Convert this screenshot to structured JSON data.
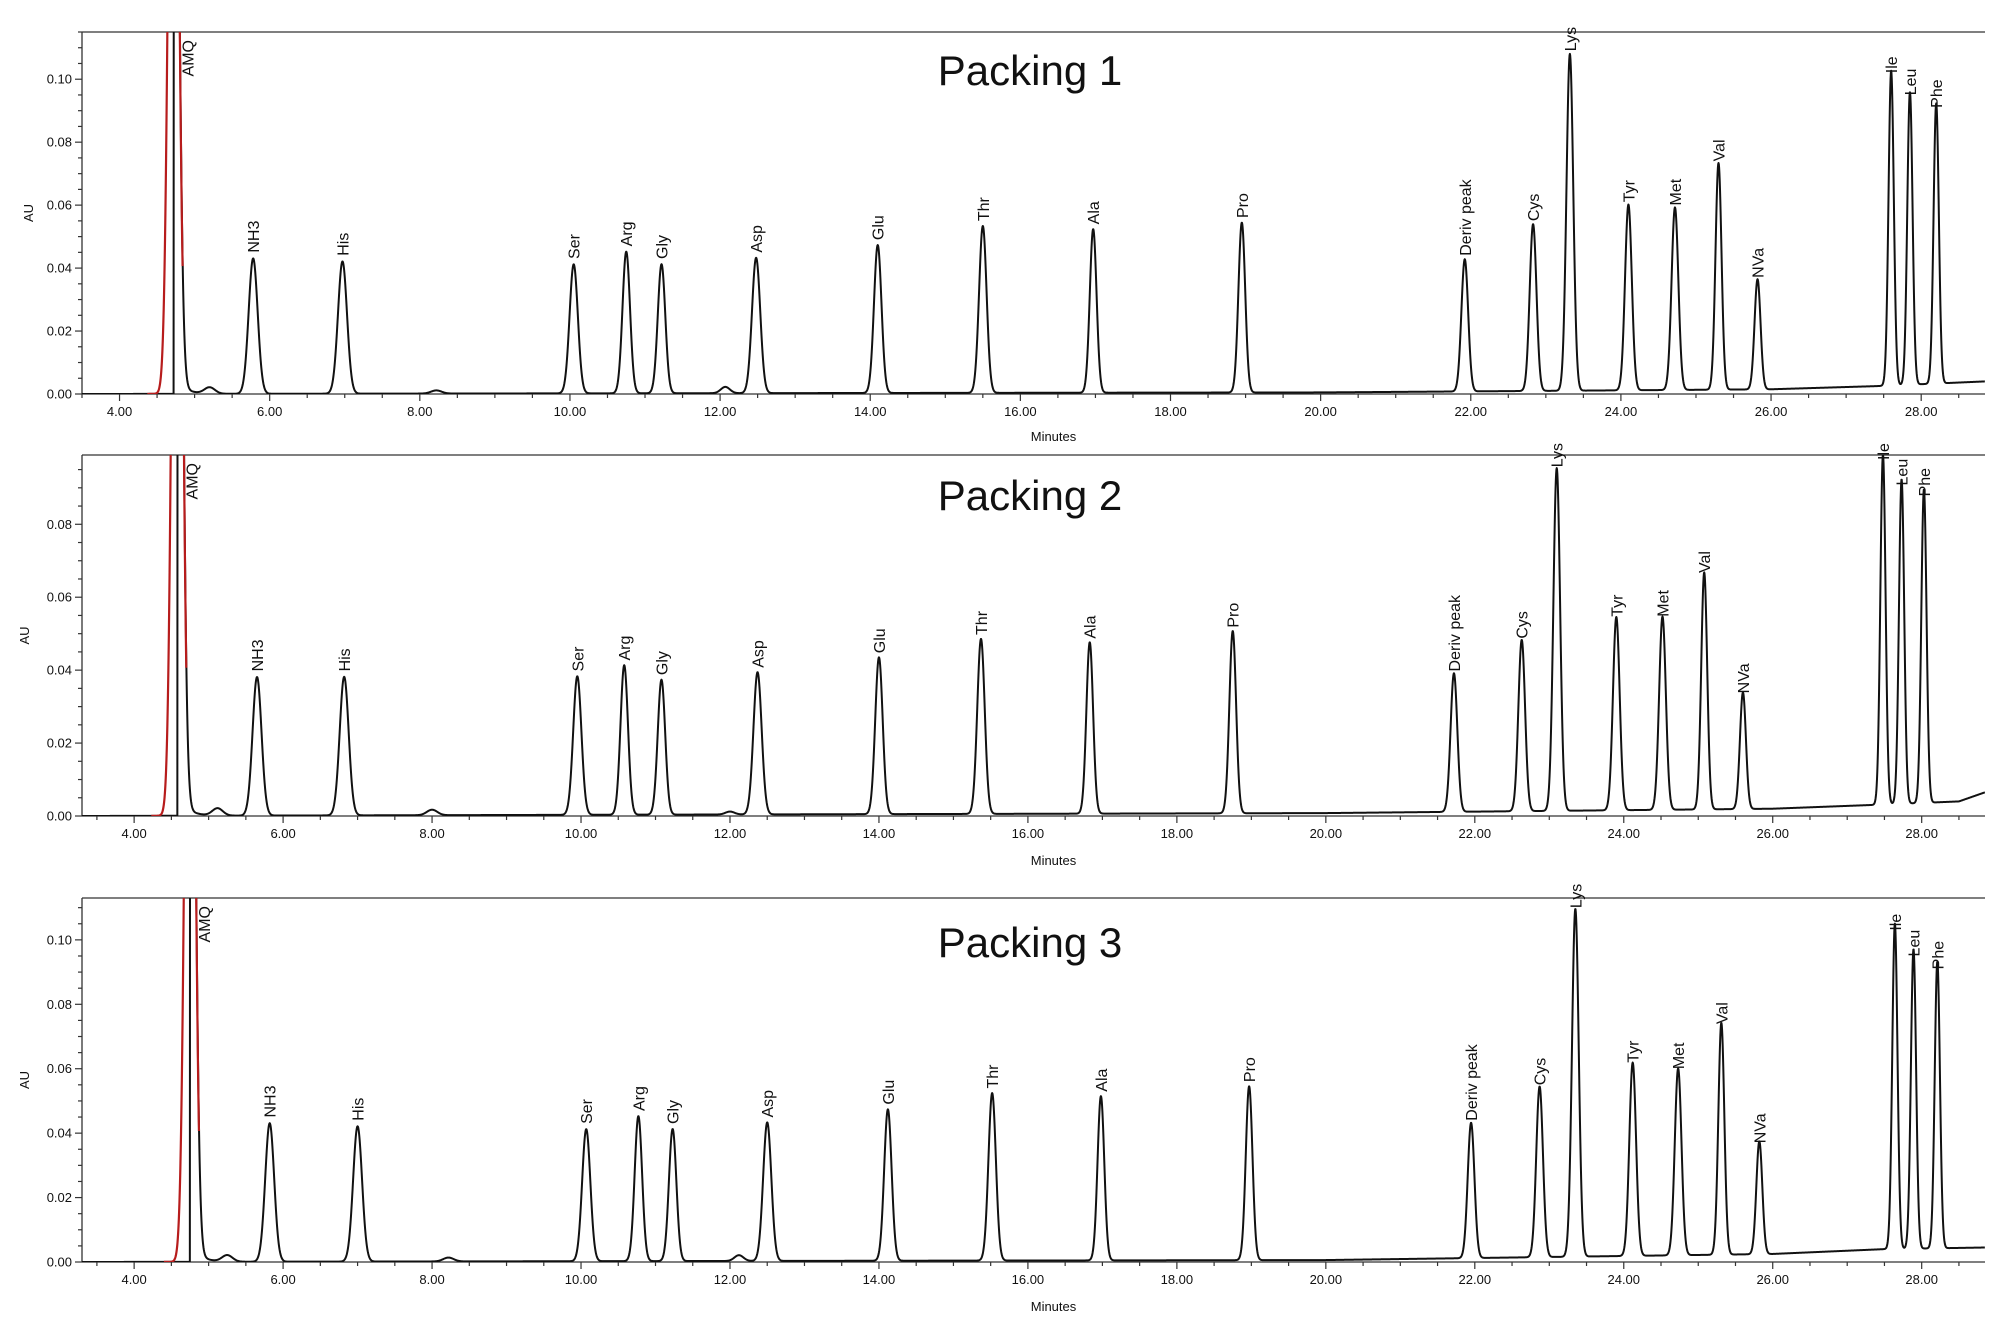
{
  "chart_data": [
    {
      "type": "line",
      "title": "Packing 1",
      "xlabel": "Minutes",
      "ylabel": "AU",
      "xlim": [
        3.5,
        28.85
      ],
      "ylim": [
        0,
        0.115
      ],
      "xticks": [
        "4.00",
        "6.00",
        "8.00",
        "10.00",
        "12.00",
        "14.00",
        "16.00",
        "18.00",
        "20.00",
        "22.00",
        "24.00",
        "26.00",
        "28.00"
      ],
      "yticks": [
        "0.00",
        "0.02",
        "0.04",
        "0.06",
        "0.08",
        "0.10"
      ],
      "grid": false,
      "peaks": [
        {
          "label": "AMQ",
          "x": 4.72,
          "y": 0.3,
          "w": 0.06,
          "color": "#b71c1c"
        },
        {
          "label": "NH3",
          "x": 5.78,
          "y": 0.043,
          "w": 0.06
        },
        {
          "label": "His",
          "x": 6.97,
          "y": 0.042,
          "w": 0.06
        },
        {
          "label": "Ser",
          "x": 10.05,
          "y": 0.041,
          "w": 0.055
        },
        {
          "label": "Arg",
          "x": 10.75,
          "y": 0.045,
          "w": 0.05
        },
        {
          "label": "Gly",
          "x": 11.22,
          "y": 0.041,
          "w": 0.05
        },
        {
          "label": "Asp",
          "x": 12.48,
          "y": 0.043,
          "w": 0.055
        },
        {
          "label": "Glu",
          "x": 14.1,
          "y": 0.047,
          "w": 0.05
        },
        {
          "label": "Thr",
          "x": 15.5,
          "y": 0.053,
          "w": 0.05
        },
        {
          "label": "Ala",
          "x": 16.97,
          "y": 0.052,
          "w": 0.045
        },
        {
          "label": "Pro",
          "x": 18.95,
          "y": 0.054,
          "w": 0.045
        },
        {
          "label": "Deriv peak",
          "x": 21.92,
          "y": 0.042,
          "w": 0.045
        },
        {
          "label": "Cys",
          "x": 22.83,
          "y": 0.053,
          "w": 0.045
        },
        {
          "label": "Lys",
          "x": 23.32,
          "y": 0.107,
          "w": 0.045
        },
        {
          "label": "Tyr",
          "x": 24.1,
          "y": 0.059,
          "w": 0.045
        },
        {
          "label": "Met",
          "x": 24.72,
          "y": 0.058,
          "w": 0.045
        },
        {
          "label": "Val",
          "x": 25.3,
          "y": 0.072,
          "w": 0.04
        },
        {
          "label": "NVa",
          "x": 25.82,
          "y": 0.035,
          "w": 0.04
        },
        {
          "label": "Ile",
          "x": 27.6,
          "y": 0.1,
          "w": 0.035
        },
        {
          "label": "Leu",
          "x": 27.85,
          "y": 0.093,
          "w": 0.035
        },
        {
          "label": "Phe",
          "x": 28.2,
          "y": 0.089,
          "w": 0.035
        }
      ],
      "minor_peaks": [
        {
          "x": 5.2,
          "y": 0.002,
          "w": 0.07
        },
        {
          "x": 8.22,
          "y": 0.001,
          "w": 0.07
        },
        {
          "x": 12.07,
          "y": 0.002,
          "w": 0.06
        }
      ],
      "baseline": [
        [
          3.5,
          0.0
        ],
        [
          20.0,
          0.0005
        ],
        [
          26.0,
          0.0015
        ],
        [
          27.4,
          0.0025
        ],
        [
          28.85,
          0.004
        ]
      ]
    },
    {
      "type": "line",
      "title": "Packing 2",
      "xlabel": "Minutes",
      "ylabel": "AU",
      "xlim": [
        3.3,
        28.85
      ],
      "ylim": [
        0,
        0.099
      ],
      "xticks": [
        "4.00",
        "6.00",
        "8.00",
        "10.00",
        "12.00",
        "14.00",
        "16.00",
        "18.00",
        "20.00",
        "22.00",
        "24.00",
        "26.00",
        "28.00"
      ],
      "yticks": [
        "0.00",
        "0.02",
        "0.04",
        "0.06",
        "0.08"
      ],
      "grid": false,
      "peaks": [
        {
          "label": "AMQ",
          "x": 4.58,
          "y": 0.3,
          "w": 0.06,
          "color": "#b71c1c"
        },
        {
          "label": "NH3",
          "x": 5.65,
          "y": 0.038,
          "w": 0.06
        },
        {
          "label": "His",
          "x": 6.82,
          "y": 0.038,
          "w": 0.06
        },
        {
          "label": "Ser",
          "x": 9.95,
          "y": 0.038,
          "w": 0.055
        },
        {
          "label": "Arg",
          "x": 10.58,
          "y": 0.041,
          "w": 0.05
        },
        {
          "label": "Gly",
          "x": 11.08,
          "y": 0.037,
          "w": 0.05
        },
        {
          "label": "Asp",
          "x": 12.37,
          "y": 0.039,
          "w": 0.055
        },
        {
          "label": "Glu",
          "x": 14.0,
          "y": 0.043,
          "w": 0.05
        },
        {
          "label": "Thr",
          "x": 15.37,
          "y": 0.048,
          "w": 0.05
        },
        {
          "label": "Ala",
          "x": 16.83,
          "y": 0.047,
          "w": 0.045
        },
        {
          "label": "Pro",
          "x": 18.75,
          "y": 0.05,
          "w": 0.045
        },
        {
          "label": "Deriv peak",
          "x": 21.72,
          "y": 0.038,
          "w": 0.045
        },
        {
          "label": "Cys",
          "x": 22.63,
          "y": 0.047,
          "w": 0.045
        },
        {
          "label": "Lys",
          "x": 23.1,
          "y": 0.094,
          "w": 0.045
        },
        {
          "label": "Tyr",
          "x": 23.9,
          "y": 0.053,
          "w": 0.045
        },
        {
          "label": "Met",
          "x": 24.52,
          "y": 0.053,
          "w": 0.045
        },
        {
          "label": "Val",
          "x": 25.08,
          "y": 0.065,
          "w": 0.04
        },
        {
          "label": "NVa",
          "x": 25.6,
          "y": 0.032,
          "w": 0.04
        },
        {
          "label": "Ile",
          "x": 27.48,
          "y": 0.096,
          "w": 0.035
        },
        {
          "label": "Leu",
          "x": 27.73,
          "y": 0.089,
          "w": 0.035
        },
        {
          "label": "Phe",
          "x": 28.03,
          "y": 0.086,
          "w": 0.035
        }
      ],
      "minor_peaks": [
        {
          "x": 5.12,
          "y": 0.002,
          "w": 0.07
        },
        {
          "x": 8.0,
          "y": 0.0015,
          "w": 0.07
        },
        {
          "x": 12.0,
          "y": 0.0008,
          "w": 0.06
        }
      ],
      "baseline": [
        [
          3.3,
          0.0
        ],
        [
          20.0,
          0.0008
        ],
        [
          26.0,
          0.002
        ],
        [
          27.3,
          0.003
        ],
        [
          28.5,
          0.004
        ],
        [
          28.85,
          0.0065
        ]
      ]
    },
    {
      "type": "line",
      "title": "Packing 3",
      "xlabel": "Minutes",
      "ylabel": "AU",
      "xlim": [
        3.3,
        28.85
      ],
      "ylim": [
        0,
        0.113
      ],
      "xticks": [
        "4.00",
        "6.00",
        "8.00",
        "10.00",
        "12.00",
        "14.00",
        "16.00",
        "18.00",
        "20.00",
        "22.00",
        "24.00",
        "26.00",
        "28.00"
      ],
      "yticks": [
        "0.00",
        "0.02",
        "0.04",
        "0.06",
        "0.08",
        "0.10"
      ],
      "grid": false,
      "peaks": [
        {
          "label": "AMQ",
          "x": 4.75,
          "y": 0.3,
          "w": 0.06,
          "color": "#b71c1c"
        },
        {
          "label": "NH3",
          "x": 5.82,
          "y": 0.043,
          "w": 0.06
        },
        {
          "label": "His",
          "x": 7.0,
          "y": 0.042,
          "w": 0.06
        },
        {
          "label": "Ser",
          "x": 10.07,
          "y": 0.041,
          "w": 0.055
        },
        {
          "label": "Arg",
          "x": 10.77,
          "y": 0.045,
          "w": 0.05
        },
        {
          "label": "Gly",
          "x": 11.23,
          "y": 0.041,
          "w": 0.05
        },
        {
          "label": "Asp",
          "x": 12.5,
          "y": 0.043,
          "w": 0.055
        },
        {
          "label": "Glu",
          "x": 14.12,
          "y": 0.047,
          "w": 0.05
        },
        {
          "label": "Thr",
          "x": 15.52,
          "y": 0.052,
          "w": 0.05
        },
        {
          "label": "Ala",
          "x": 16.98,
          "y": 0.051,
          "w": 0.045
        },
        {
          "label": "Pro",
          "x": 18.97,
          "y": 0.054,
          "w": 0.045
        },
        {
          "label": "Deriv peak",
          "x": 21.95,
          "y": 0.042,
          "w": 0.045
        },
        {
          "label": "Cys",
          "x": 22.87,
          "y": 0.053,
          "w": 0.045
        },
        {
          "label": "Lys",
          "x": 23.35,
          "y": 0.108,
          "w": 0.045
        },
        {
          "label": "Tyr",
          "x": 24.12,
          "y": 0.06,
          "w": 0.045
        },
        {
          "label": "Met",
          "x": 24.73,
          "y": 0.058,
          "w": 0.045
        },
        {
          "label": "Val",
          "x": 25.31,
          "y": 0.072,
          "w": 0.04
        },
        {
          "label": "NVa",
          "x": 25.82,
          "y": 0.035,
          "w": 0.04
        },
        {
          "label": "Ile",
          "x": 27.64,
          "y": 0.101,
          "w": 0.035
        },
        {
          "label": "Leu",
          "x": 27.89,
          "y": 0.093,
          "w": 0.035
        },
        {
          "label": "Phe",
          "x": 28.21,
          "y": 0.089,
          "w": 0.035
        }
      ],
      "minor_peaks": [
        {
          "x": 5.25,
          "y": 0.002,
          "w": 0.07
        },
        {
          "x": 8.22,
          "y": 0.0012,
          "w": 0.07
        },
        {
          "x": 12.12,
          "y": 0.0018,
          "w": 0.06
        }
      ],
      "baseline": [
        [
          3.3,
          0.0
        ],
        [
          20.0,
          0.0006
        ],
        [
          26.0,
          0.0025
        ],
        [
          27.5,
          0.004
        ],
        [
          28.85,
          0.0045
        ]
      ]
    }
  ]
}
